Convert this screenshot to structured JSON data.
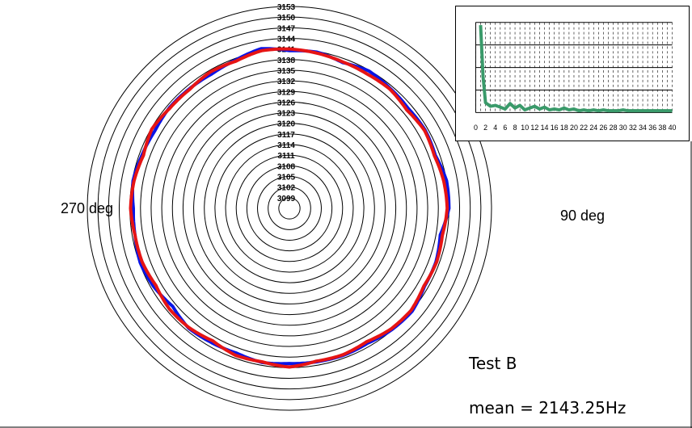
{
  "chart_data": [
    {
      "type": "line",
      "projection": "polar",
      "radial_tick_labels": [
        "3099",
        "3102",
        "3105",
        "3108",
        "3111",
        "3114",
        "3117",
        "3120",
        "3123",
        "3126",
        "3129",
        "3132",
        "3135",
        "3138",
        "3141",
        "3144",
        "3147",
        "3150",
        "3153"
      ],
      "rlim": [
        3096,
        3153
      ],
      "angle_labels": [
        "270 deg",
        "90 deg"
      ],
      "annotations": [
        "Test B",
        "mean = 2143.25Hz"
      ],
      "grid": true,
      "series": [
        {
          "color": "#0a14e6",
          "theta_deg": [
            0,
            10,
            20,
            30,
            40,
            50,
            60,
            70,
            80,
            90,
            100,
            110,
            120,
            130,
            140,
            150,
            160,
            170,
            180,
            190,
            200,
            210,
            220,
            230,
            240,
            250,
            260,
            270,
            280,
            290,
            300,
            310,
            320,
            330,
            340,
            350
          ],
          "r": [
            3140.5,
            3140.8,
            3139.8,
            3140.8,
            3140.2,
            3139.8,
            3140.2,
            3139.8,
            3141.0,
            3141.0,
            3139.2,
            3140.0,
            3140.0,
            3141.2,
            3140.8,
            3140.0,
            3140.2,
            3140.0,
            3139.8,
            3140.2,
            3139.5,
            3139.8,
            3140.2,
            3139.0,
            3140.2,
            3140.8,
            3140.2,
            3140.0,
            3140.8,
            3140.2,
            3139.8,
            3140.2,
            3140.0,
            3139.8,
            3140.5,
            3141.8
          ]
        },
        {
          "color": "#e61414",
          "theta_deg": [
            0,
            10,
            20,
            30,
            40,
            50,
            60,
            70,
            80,
            90,
            100,
            110,
            120,
            130,
            140,
            150,
            160,
            170,
            180,
            190,
            200,
            210,
            220,
            230,
            240,
            250,
            260,
            270,
            280,
            290,
            300,
            310,
            320,
            330,
            340,
            350
          ],
          "r": [
            3141.0,
            3140.5,
            3140.0,
            3139.8,
            3140.0,
            3139.2,
            3140.0,
            3139.5,
            3140.2,
            3140.5,
            3139.8,
            3140.2,
            3139.8,
            3140.8,
            3140.5,
            3139.5,
            3140.0,
            3139.8,
            3140.8,
            3140.0,
            3140.2,
            3139.2,
            3140.0,
            3140.2,
            3139.5,
            3140.2,
            3140.2,
            3140.8,
            3140.5,
            3139.8,
            3140.8,
            3140.0,
            3139.8,
            3140.5,
            3140.2,
            3141.2
          ]
        }
      ]
    },
    {
      "type": "line",
      "x_tick_labels": [
        "0",
        "2",
        "4",
        "6",
        "8",
        "10",
        "12",
        "14",
        "16",
        "18",
        "20",
        "22",
        "24",
        "26",
        "28",
        "30",
        "32",
        "34",
        "36",
        "38",
        "40"
      ],
      "xlim": [
        0,
        40
      ],
      "ylim": [
        0,
        1
      ],
      "grid": true,
      "series": [
        {
          "color": "#3a9a6a",
          "x": [
            1,
            1.5,
            2,
            3,
            4,
            5,
            6,
            7,
            8,
            9,
            10,
            11,
            12,
            13,
            14,
            15,
            16,
            17,
            18,
            19,
            20,
            21,
            22,
            23,
            24,
            25,
            26,
            27,
            28,
            29,
            30,
            31,
            32,
            33,
            34,
            35,
            36,
            37,
            38,
            39,
            40
          ],
          "y": [
            0.97,
            0.4,
            0.11,
            0.07,
            0.08,
            0.06,
            0.04,
            0.1,
            0.05,
            0.08,
            0.03,
            0.05,
            0.07,
            0.04,
            0.06,
            0.03,
            0.04,
            0.03,
            0.05,
            0.03,
            0.04,
            0.02,
            0.03,
            0.02,
            0.03,
            0.02,
            0.03,
            0.02,
            0.02,
            0.02,
            0.03,
            0.02,
            0.02,
            0.02,
            0.02,
            0.02,
            0.02,
            0.02,
            0.02,
            0.02,
            0.02
          ]
        }
      ]
    }
  ]
}
